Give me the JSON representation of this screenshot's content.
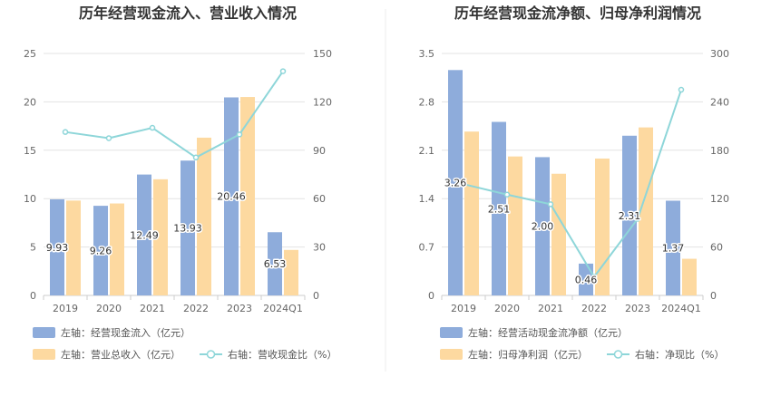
{
  "chart_data": [
    {
      "type": "bar",
      "title": "历年经营现金流入、营业收入情况",
      "categories": [
        "2019",
        "2020",
        "2021",
        "2022",
        "2023",
        "2024Q1"
      ],
      "ylim_left": [
        0,
        25
      ],
      "yticks_left": [
        "0",
        "5",
        "10",
        "15",
        "20",
        "25"
      ],
      "ylim_right": [
        0,
        150
      ],
      "yticks_right": [
        "0",
        "30",
        "60",
        "90",
        "120",
        "150"
      ],
      "grid": true,
      "legend_position": "bottom-left",
      "series": [
        {
          "name": "左轴：经营现金流入（亿元）",
          "axis": "left",
          "kind": "bar",
          "color": "#8eacdb",
          "values": [
            9.93,
            9.26,
            12.49,
            13.93,
            20.46,
            6.53
          ],
          "labels": [
            "9.93",
            "9.26",
            "12.49",
            "13.93",
            "20.46",
            "6.53"
          ]
        },
        {
          "name": "左轴：营业总收入（亿元）",
          "axis": "left",
          "kind": "bar",
          "color": "#fdd9a0",
          "values": [
            9.8,
            9.5,
            12.0,
            16.3,
            20.5,
            4.7
          ]
        },
        {
          "name": "右轴：营收现金比（%）",
          "axis": "right",
          "kind": "line",
          "color": "#8ed6d9",
          "values": [
            101.3,
            97.5,
            103.9,
            85.5,
            99.8,
            139.0
          ]
        }
      ]
    },
    {
      "type": "bar",
      "title": "历年经营现金流净额、归母净利润情况",
      "categories": [
        "2019",
        "2020",
        "2021",
        "2022",
        "2023",
        "2024Q1"
      ],
      "ylim_left": [
        0,
        3.5
      ],
      "yticks_left": [
        "0",
        "0.7",
        "1.4",
        "2.1",
        "2.8",
        "3.5"
      ],
      "ylim_right": [
        0,
        300
      ],
      "yticks_right": [
        "0",
        "60",
        "120",
        "180",
        "240",
        "300"
      ],
      "grid": true,
      "legend_position": "bottom-left",
      "series": [
        {
          "name": "左轴：经营活动现金流净额（亿元）",
          "axis": "left",
          "kind": "bar",
          "color": "#8eacdb",
          "values": [
            3.26,
            2.51,
            2.0,
            0.46,
            2.31,
            1.37
          ],
          "labels": [
            "3.26",
            "2.51",
            "2.00",
            "0.46",
            "2.31",
            "1.37"
          ]
        },
        {
          "name": "左轴：归母净利润（亿元）",
          "axis": "left",
          "kind": "bar",
          "color": "#fdd9a0",
          "values": [
            2.37,
            2.01,
            1.76,
            1.98,
            2.43,
            0.53
          ]
        },
        {
          "name": "右轴：净现比（%）",
          "axis": "right",
          "kind": "line",
          "color": "#8ed6d9",
          "values": [
            138.0,
            125.0,
            113.0,
            23.0,
            95.0,
            255.0
          ]
        }
      ]
    }
  ]
}
